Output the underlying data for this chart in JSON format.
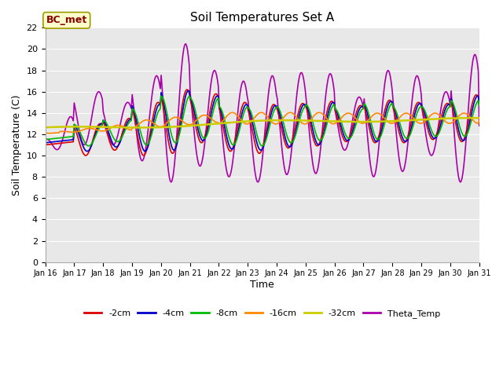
{
  "title": "Soil Temperatures Set A",
  "xlabel": "Time",
  "ylabel": "Soil Temperature (C)",
  "ylim": [
    0,
    22
  ],
  "yticks": [
    0,
    2,
    4,
    6,
    8,
    10,
    12,
    14,
    16,
    18,
    20,
    22
  ],
  "figure_facecolor": "#ffffff",
  "plot_bg_color": "#e8e8e8",
  "grid_color": "#ffffff",
  "annotation_text": "BC_met",
  "annotation_box_facecolor": "#ffffcc",
  "annotation_box_edgecolor": "#999900",
  "annotation_text_color": "#880000",
  "series": {
    "-2cm": {
      "color": "#dd0000",
      "lw": 1.2
    },
    "-4cm": {
      "color": "#0000cc",
      "lw": 1.2
    },
    "-8cm": {
      "color": "#00bb00",
      "lw": 1.2
    },
    "-16cm": {
      "color": "#ff8800",
      "lw": 1.2
    },
    "-32cm": {
      "color": "#cccc00",
      "lw": 1.8
    },
    "Theta_Temp": {
      "color": "#aa00aa",
      "lw": 1.2
    }
  },
  "x_labels": [
    "Jan 16",
    "Jan 17",
    "Jan 18",
    "Jan 19",
    "Jan 20",
    "Jan 21",
    "Jan 22",
    "Jan 23",
    "Jan 24",
    "Jan 25",
    "Jan 26",
    "Jan 27",
    "Jan 28",
    "Jan 29",
    "Jan 30",
    "Jan 31"
  ],
  "days": 15,
  "n_points": 480
}
